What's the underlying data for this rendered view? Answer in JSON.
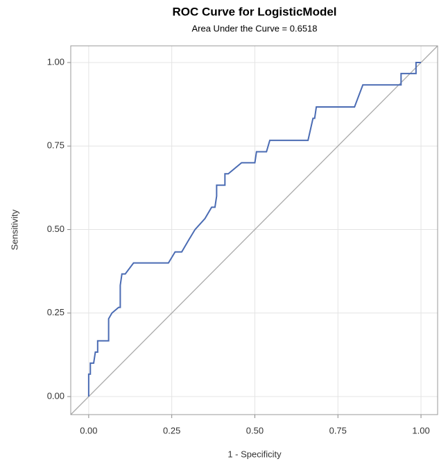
{
  "chart_data": {
    "type": "line",
    "title": "ROC Curve for LogisticModel",
    "subtitle": "Area Under the Curve = 0.6518",
    "x_label": "1 - Specificity",
    "y_label": "Sensitivity",
    "series": [
      {
        "color": "#4a6bb3",
        "x": [
          0,
          0,
          0.005,
          0.005,
          0.015,
          0.02,
          0.027,
          0.027,
          0.06,
          0.06,
          0.07,
          0.09,
          0.095,
          0.095,
          0.1,
          0.11,
          0.135,
          0.24,
          0.26,
          0.28,
          0.3,
          0.32,
          0.35,
          0.37,
          0.38,
          0.385,
          0.385,
          0.41,
          0.41,
          0.42,
          0.46,
          0.5,
          0.505,
          0.535,
          0.545,
          0.66,
          0.675,
          0.68,
          0.685,
          0.8,
          0.825,
          0.94,
          0.94,
          0.985,
          0.985,
          1
        ],
        "values": [
          0,
          0.067,
          0.067,
          0.1,
          0.1,
          0.133,
          0.133,
          0.167,
          0.167,
          0.233,
          0.25,
          0.267,
          0.267,
          0.333,
          0.367,
          0.367,
          0.4,
          0.4,
          0.433,
          0.433,
          0.467,
          0.5,
          0.533,
          0.567,
          0.567,
          0.6,
          0.633,
          0.633,
          0.667,
          0.667,
          0.7,
          0.7,
          0.733,
          0.733,
          0.767,
          0.767,
          0.833,
          0.833,
          0.867,
          0.867,
          0.933,
          0.933,
          0.967,
          0.967,
          1,
          1
        ]
      }
    ],
    "xlim": [
      -0.054,
      1.05
    ],
    "ylim": [
      -0.054,
      1.05
    ],
    "xticks": [
      {
        "value": 0,
        "label": "0.00"
      },
      {
        "value": 0.25,
        "label": "0.25"
      },
      {
        "value": 0.5,
        "label": "0.50"
      },
      {
        "value": 0.75,
        "label": "0.75"
      },
      {
        "value": 1,
        "label": "1.00"
      }
    ],
    "yticks": [
      {
        "value": 0,
        "label": "0.00"
      },
      {
        "value": 0.25,
        "label": "0.25"
      },
      {
        "value": 0.5,
        "label": "0.50"
      },
      {
        "value": 0.75,
        "label": "0.75"
      },
      {
        "value": 1,
        "label": "1.00"
      }
    ],
    "grid": true,
    "diagonal": true
  }
}
